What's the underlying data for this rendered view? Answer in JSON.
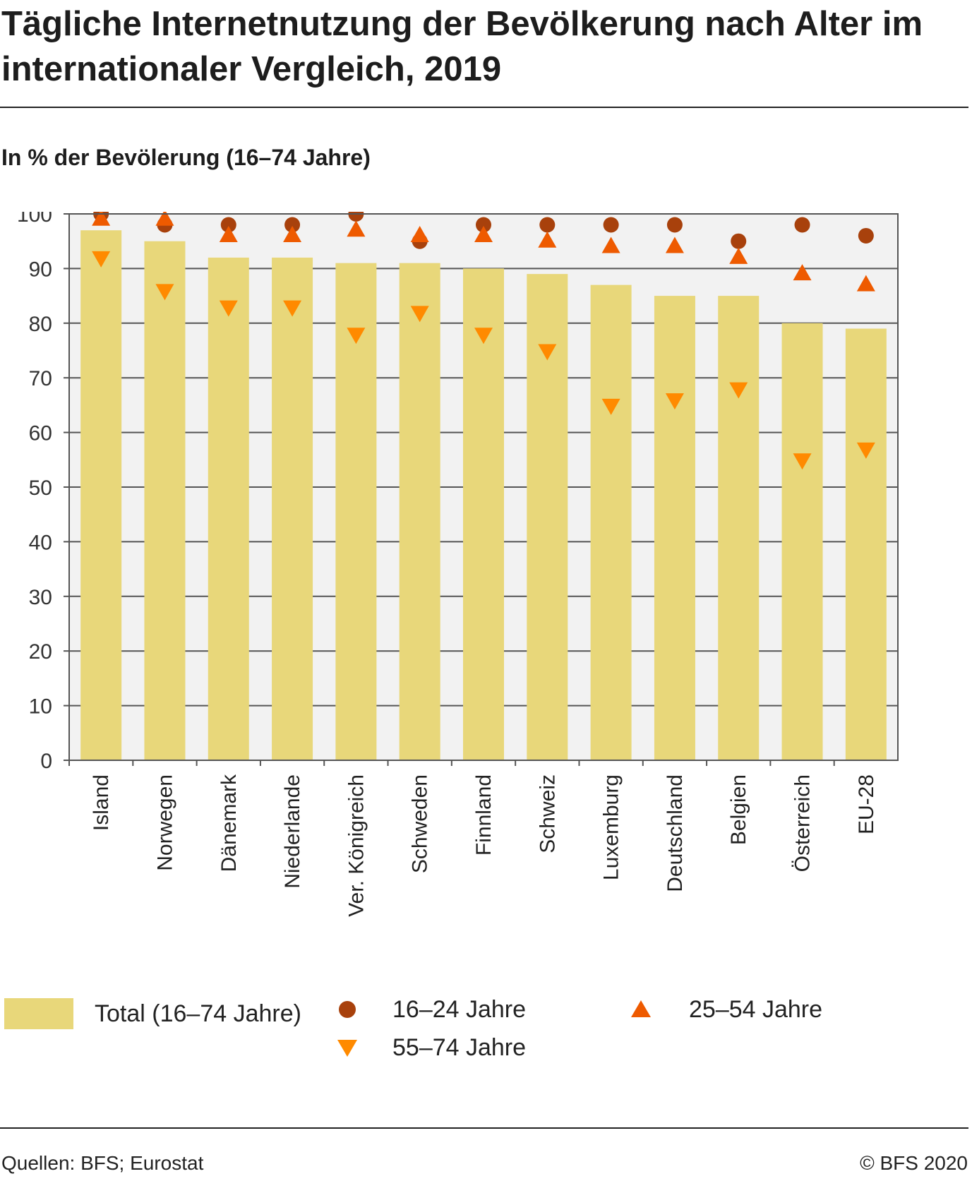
{
  "header": {
    "title": "Tägliche Internetnutzung der Bevölkerung nach Alter im internationaler Vergleich, 2019",
    "unit_label": "In % der Bevölerung (16–74 Jahre)"
  },
  "chart_data": {
    "type": "bar",
    "title": "Tägliche Internetnutzung der Bevölkerung nach Alter im internationaler Vergleich, 2019",
    "ylabel": "In % der Bevölerung (16–74 Jahre)",
    "xlabel": "",
    "ylim": [
      0,
      100
    ],
    "yticks": [
      0,
      10,
      20,
      30,
      40,
      50,
      60,
      70,
      80,
      90,
      100
    ],
    "grid": true,
    "legend_position": "bottom",
    "categories": [
      "Island",
      "Norwegen",
      "Dänemark",
      "Niederlande",
      "Ver. Königreich",
      "Schweden",
      "Finnland",
      "Schweiz",
      "Luxemburg",
      "Deutschland",
      "Belgien",
      "Österreich",
      "EU-28"
    ],
    "series": [
      {
        "name": "Total (16–74 Jahre)",
        "mark": "bar",
        "color": "#e8d77a",
        "values": [
          97,
          95,
          92,
          92,
          91,
          91,
          90,
          89,
          87,
          85,
          85,
          80,
          79
        ]
      },
      {
        "name": "16–24 Jahre",
        "mark": "circle",
        "color": "#a8410c",
        "values": [
          100,
          98,
          98,
          98,
          100,
          95,
          98,
          98,
          98,
          98,
          95,
          98,
          96
        ]
      },
      {
        "name": "25–54 Jahre",
        "mark": "triangle-up",
        "color": "#ee5a00",
        "values": [
          99,
          99,
          96,
          96,
          97,
          96,
          96,
          95,
          94,
          94,
          92,
          89,
          87
        ]
      },
      {
        "name": "55–74 Jahre",
        "mark": "triangle-down",
        "color": "#ff8a00",
        "values": [
          92,
          86,
          83,
          83,
          78,
          82,
          78,
          75,
          65,
          66,
          68,
          55,
          57
        ]
      }
    ]
  },
  "footer": {
    "source": "Quellen: BFS; Eurostat",
    "copyright": "© BFS 2020"
  }
}
